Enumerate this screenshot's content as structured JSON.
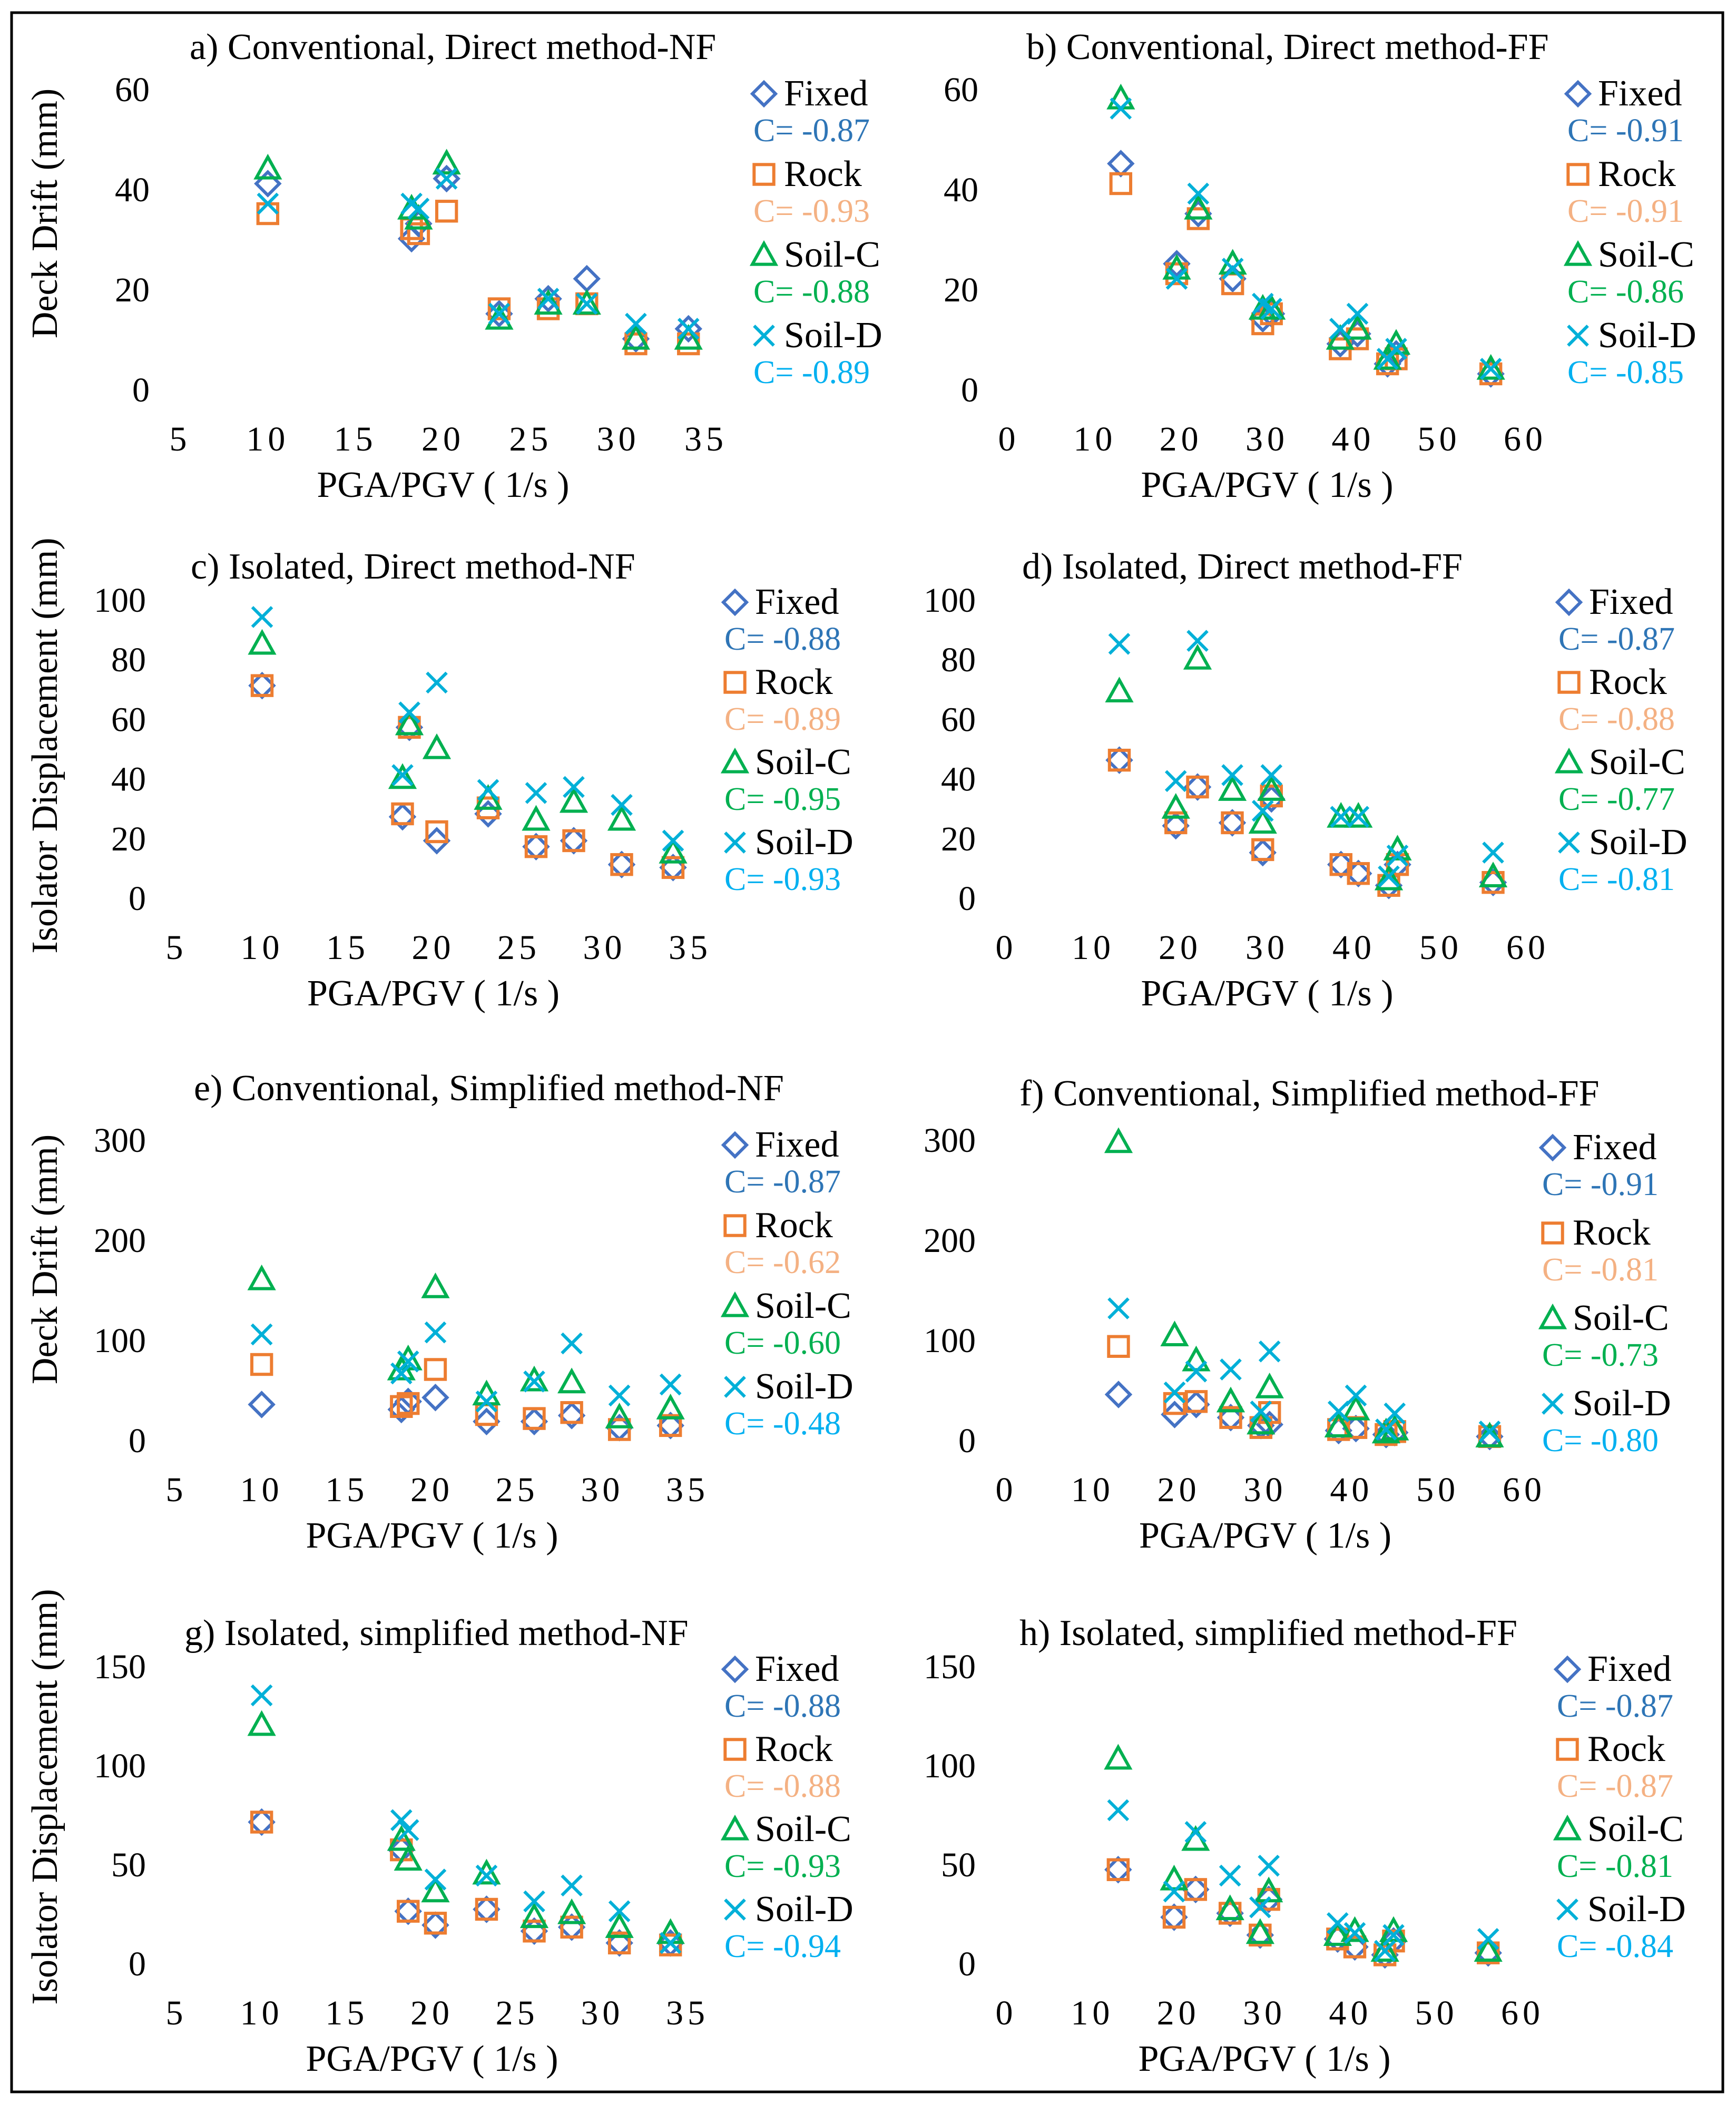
{
  "figure": {
    "row_axis_labels": [
      "Deck Drift (mm)",
      "Isolator Displacement (mm)",
      "Deck Drift (mm)",
      "Isolator Displacement (mm)"
    ]
  },
  "legend_names": [
    "Fixed",
    "Rock",
    "Soil-C",
    "Soil-D"
  ],
  "colors": {
    "Fixed": "#4472c4",
    "Rock": "#ed7d31",
    "Soil-C": "#00b050",
    "Soil-D": "#00b0d8",
    "Fixed_text": "#2e75b6",
    "Rock_text": "#f4b183",
    "Soil-C_text": "#00b050",
    "Soil-D_text": "#00b0f0"
  },
  "chart_data": [
    {
      "type": "scatter",
      "title": "a) Conventional, Direct method-NF",
      "xlabel": "PGA/PGV ( 1/s )",
      "ylabel": "Deck Drift (mm)",
      "xlim": [
        5,
        35
      ],
      "ylim": [
        0,
        60
      ],
      "xticks": [
        "5",
        "10",
        "15",
        "20",
        "25",
        "30",
        "35"
      ],
      "yticks": [
        "0",
        "20",
        "40",
        "60"
      ],
      "x": [
        10,
        18.2,
        18.6,
        20.2,
        23.2,
        26,
        28.2,
        31,
        34
      ],
      "series": [
        {
          "name": "Fixed",
          "marker": "diamond",
          "values": [
            41,
            30,
            33,
            42,
            15,
            18,
            22,
            10,
            12
          ],
          "corr": "C= -0.87"
        },
        {
          "name": "Rock",
          "marker": "square",
          "values": [
            35,
            32,
            31,
            35.5,
            16,
            16,
            17,
            9,
            9
          ],
          "corr": "C= -0.93"
        },
        {
          "name": "Soil-C",
          "marker": "triangle",
          "values": [
            44,
            36,
            34,
            45,
            14,
            17,
            17,
            10,
            10
          ],
          "corr": "C= -0.88"
        },
        {
          "name": "Soil-D",
          "marker": "x",
          "values": [
            37,
            37,
            36,
            42,
            15,
            18,
            17,
            13,
            12
          ],
          "corr": "C= -0.89"
        }
      ]
    },
    {
      "type": "scatter",
      "title": "b) Conventional, Direct method-FF",
      "xlabel": "PGA/PGV ( 1/s )",
      "ylabel": "",
      "xlim": [
        0,
        60
      ],
      "ylim": [
        0,
        60
      ],
      "xticks": [
        "0",
        "10",
        "20",
        "30",
        "40",
        "50",
        "60"
      ],
      "yticks": [
        "0",
        "20",
        "40",
        "60"
      ],
      "x": [
        13,
        19.5,
        22,
        26,
        29.5,
        30.5,
        38.5,
        40.5,
        44,
        45,
        56
      ],
      "series": [
        {
          "name": "Fixed",
          "marker": "diamond",
          "values": [
            45,
            25,
            35,
            22,
            14,
            15,
            9,
            11,
            5,
            7,
            3
          ],
          "corr": "C= -0.91"
        },
        {
          "name": "Rock",
          "marker": "square",
          "values": [
            41,
            23,
            34,
            21,
            13,
            15,
            8,
            10,
            5,
            6,
            3
          ],
          "corr": "C= -0.91"
        },
        {
          "name": "Soil-C",
          "marker": "triangle",
          "values": [
            58,
            24,
            36,
            25,
            16,
            16,
            10,
            12,
            6,
            9,
            4
          ],
          "corr": "C= -0.86"
        },
        {
          "name": "Soil-D",
          "marker": "x",
          "values": [
            56,
            22,
            39,
            24,
            17,
            16,
            12,
            15,
            6,
            8,
            4
          ],
          "corr": "C= -0.85"
        }
      ]
    },
    {
      "type": "scatter",
      "title": "c) Isolated, Direct method-NF",
      "xlabel": "PGA/PGV ( 1/s )",
      "ylabel": "Isolator Displacement (mm)",
      "xlim": [
        5,
        35
      ],
      "ylim": [
        0,
        100
      ],
      "xticks": [
        "5",
        "10",
        "15",
        "20",
        "25",
        "30",
        "35"
      ],
      "yticks": [
        "0",
        "20",
        "40",
        "60",
        "80",
        "100"
      ],
      "x": [
        10,
        18.2,
        18.6,
        20.2,
        23.2,
        26,
        28.2,
        31,
        34
      ],
      "series": [
        {
          "name": "Fixed",
          "marker": "diamond",
          "values": [
            71,
            27,
            57,
            19,
            28,
            17,
            19,
            11,
            10
          ],
          "corr": "C= -0.88"
        },
        {
          "name": "Rock",
          "marker": "square",
          "values": [
            71,
            28,
            57,
            22,
            30,
            17,
            19,
            11,
            10
          ],
          "corr": "C= -0.89"
        },
        {
          "name": "Soil-C",
          "marker": "triangle",
          "values": [
            85,
            40,
            58,
            50,
            33,
            26,
            32,
            26,
            15
          ],
          "corr": "C= -0.95"
        },
        {
          "name": "Soil-D",
          "marker": "x",
          "values": [
            94,
            41,
            62,
            72,
            36,
            35,
            37,
            31,
            19
          ],
          "corr": "C= -0.93"
        }
      ]
    },
    {
      "type": "scatter",
      "title": "d) Isolated, Direct method-FF",
      "xlabel": "PGA/PGV ( 1/s )",
      "ylabel": "",
      "xlim": [
        0,
        60
      ],
      "ylim": [
        0,
        100
      ],
      "xticks": [
        "0",
        "10",
        "20",
        "30",
        "40",
        "50",
        "60"
      ],
      "yticks": [
        "0",
        "20",
        "40",
        "60",
        "80",
        "100"
      ],
      "x": [
        13,
        19.5,
        22,
        26,
        29.5,
        30.5,
        38.5,
        40.5,
        44,
        45,
        56
      ],
      "series": [
        {
          "name": "Fixed",
          "marker": "diamond",
          "values": [
            46,
            24,
            37,
            25,
            15,
            33,
            11,
            8,
            4,
            11,
            5
          ],
          "corr": "C= -0.87"
        },
        {
          "name": "Rock",
          "marker": "square",
          "values": [
            46,
            25,
            37,
            25,
            16,
            34,
            11,
            8,
            4,
            11,
            5
          ],
          "corr": "C= -0.88"
        },
        {
          "name": "Soil-C",
          "marker": "triangle",
          "values": [
            69,
            30,
            80,
            36,
            25,
            36,
            27,
            27,
            6,
            16,
            7
          ],
          "corr": "C= -0.77"
        },
        {
          "name": "Soil-D",
          "marker": "x",
          "values": [
            85,
            39,
            86,
            41,
            29,
            41,
            27,
            27,
            7,
            14,
            15
          ],
          "corr": "C= -0.81"
        }
      ]
    },
    {
      "type": "scatter",
      "title": "e) Conventional, Simplified method-NF",
      "xlabel": "PGA/PGV ( 1/s )",
      "ylabel": "Deck Drift (mm)",
      "xlim": [
        5,
        35
      ],
      "ylim": [
        0,
        300
      ],
      "xticks": [
        "5",
        "10",
        "15",
        "20",
        "25",
        "30",
        "35"
      ],
      "yticks": [
        "0",
        "100",
        "200",
        "300"
      ],
      "x": [
        10,
        18.2,
        18.6,
        20.2,
        23.2,
        26,
        28.2,
        31,
        34
      ],
      "series": [
        {
          "name": "Fixed",
          "marker": "diamond",
          "values": [
            35,
            30,
            38,
            42,
            18,
            18,
            24,
            12,
            14
          ],
          "corr": "C= -0.87"
        },
        {
          "name": "Rock",
          "marker": "square",
          "values": [
            75,
            33,
            36,
            70,
            25,
            21,
            27,
            10,
            14
          ],
          "corr": "C= -0.62"
        },
        {
          "name": "Soil-C",
          "marker": "triangle",
          "values": [
            160,
            70,
            80,
            152,
            45,
            59,
            57,
            22,
            31
          ],
          "corr": "C= -0.60"
        },
        {
          "name": "Soil-D",
          "marker": "x",
          "values": [
            105,
            66,
            78,
            107,
            38,
            58,
            96,
            44,
            55
          ],
          "corr": "C= -0.48"
        }
      ]
    },
    {
      "type": "scatter",
      "title": "f) Conventional, Simplified method-FF",
      "xlabel": "PGA/PGV ( 1/s )",
      "ylabel": "",
      "xlim": [
        0,
        60
      ],
      "ylim": [
        0,
        300
      ],
      "xticks": [
        "0",
        "10",
        "20",
        "30",
        "40",
        "50",
        "60"
      ],
      "yticks": [
        "0",
        "100",
        "200",
        "300"
      ],
      "x": [
        13,
        19.5,
        22,
        26,
        29.5,
        30.5,
        38.5,
        40.5,
        44,
        45,
        56
      ],
      "series": [
        {
          "name": "Fixed",
          "marker": "diamond",
          "values": [
            45,
            25,
            35,
            22,
            14,
            15,
            9,
            11,
            5,
            7,
            3
          ],
          "corr": "C= -0.91"
        },
        {
          "name": "Rock",
          "marker": "square",
          "values": [
            93,
            36,
            38,
            22,
            12,
            27,
            10,
            12,
            5,
            8,
            3
          ],
          "corr": "C= -0.81"
        },
        {
          "name": "Soil-C",
          "marker": "triangle",
          "values": [
            297,
            104,
            79,
            38,
            16,
            52,
            13,
            30,
            7,
            10,
            3
          ],
          "corr": "C= -0.73"
        },
        {
          "name": "Soil-D",
          "marker": "x",
          "values": [
            131,
            47,
            68,
            70,
            28,
            88,
            28,
            44,
            10,
            26,
            8
          ],
          "corr": "C= -0.80"
        }
      ]
    },
    {
      "type": "scatter",
      "title": "g) Isolated, simplified method-NF",
      "xlabel": "PGA/PGV ( 1/s )",
      "ylabel": "Isolator Displacement (mm)",
      "xlim": [
        5,
        35
      ],
      "ylim": [
        0,
        150
      ],
      "xticks": [
        "5",
        "10",
        "15",
        "20",
        "25",
        "30",
        "35"
      ],
      "yticks": [
        "0",
        "50",
        "100",
        "150"
      ],
      "x": [
        10,
        18.2,
        18.6,
        20.2,
        23.2,
        26,
        28.2,
        31,
        34
      ],
      "series": [
        {
          "name": "Fixed",
          "marker": "diamond",
          "values": [
            71,
            57,
            26,
            19,
            27,
            16,
            18,
            10,
            10
          ],
          "corr": "C= -0.88"
        },
        {
          "name": "Rock",
          "marker": "square",
          "values": [
            71,
            57,
            26,
            20,
            27,
            16,
            18,
            10,
            9
          ],
          "corr": "C= -0.88"
        },
        {
          "name": "Soil-C",
          "marker": "triangle",
          "values": [
            120,
            62,
            52,
            36,
            45,
            23,
            25,
            18,
            15
          ],
          "corr": "C= -0.93"
        },
        {
          "name": "Soil-D",
          "marker": "x",
          "values": [
            135,
            72,
            67,
            42,
            44,
            31,
            39,
            26,
            10
          ],
          "corr": "C= -0.94"
        }
      ]
    },
    {
      "type": "scatter",
      "title": "h) Isolated, simplified method-FF",
      "xlabel": "PGA/PGV ( 1/s )",
      "ylabel": "",
      "xlim": [
        0,
        60
      ],
      "ylim": [
        0,
        150
      ],
      "xticks": [
        "0",
        "10",
        "20",
        "30",
        "40",
        "50",
        "60"
      ],
      "yticks": [
        "0",
        "50",
        "100",
        "150"
      ],
      "x": [
        13,
        19.5,
        22,
        26,
        29.5,
        30.5,
        38.5,
        40.5,
        44,
        45,
        56
      ],
      "series": [
        {
          "name": "Fixed",
          "marker": "diamond",
          "values": [
            47,
            23,
            37,
            25,
            14,
            32,
            12,
            8,
            4,
            11,
            5
          ],
          "corr": "C= -0.87"
        },
        {
          "name": "Rock",
          "marker": "square",
          "values": [
            47,
            23,
            37,
            25,
            14,
            32,
            12,
            8,
            4,
            11,
            5
          ],
          "corr": "C= -0.87"
        },
        {
          "name": "Soil-C",
          "marker": "triangle",
          "values": [
            103,
            42,
            62,
            27,
            15,
            36,
            14,
            16,
            6,
            16,
            6
          ],
          "corr": "C= -0.81"
        },
        {
          "name": "Soil-D",
          "marker": "x",
          "values": [
            77,
            36,
            66,
            44,
            28,
            49,
            20,
            15,
            6,
            14,
            12
          ],
          "corr": "C= -0.84"
        }
      ]
    }
  ]
}
